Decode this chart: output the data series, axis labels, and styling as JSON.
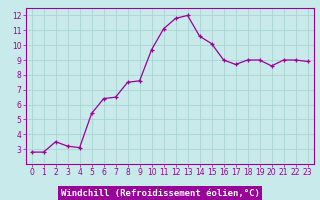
{
  "x": [
    0,
    1,
    2,
    3,
    4,
    5,
    6,
    7,
    8,
    9,
    10,
    11,
    12,
    13,
    14,
    15,
    16,
    17,
    18,
    19,
    20,
    21,
    22,
    23
  ],
  "y": [
    2.8,
    2.8,
    3.5,
    3.2,
    3.1,
    5.4,
    6.4,
    6.5,
    7.5,
    7.6,
    9.7,
    11.1,
    11.8,
    12.0,
    10.6,
    10.1,
    9.0,
    8.7,
    9.0,
    9.0,
    8.6,
    9.0,
    9.0,
    8.9
  ],
  "line_color": "#990099",
  "marker": "+",
  "bg_color": "#c8eaea",
  "grid_color": "#aad4d4",
  "xlabel": "Windchill (Refroidissement éolien,°C)",
  "xlabel_color": "#ffffff",
  "xlabel_bg": "#990099",
  "xlim": [
    -0.5,
    23.5
  ],
  "ylim": [
    2.0,
    12.5
  ],
  "yticks": [
    3,
    4,
    5,
    6,
    7,
    8,
    9,
    10,
    11,
    12
  ],
  "xticks": [
    0,
    1,
    2,
    3,
    4,
    5,
    6,
    7,
    8,
    9,
    10,
    11,
    12,
    13,
    14,
    15,
    16,
    17,
    18,
    19,
    20,
    21,
    22,
    23
  ],
  "tick_color": "#990099",
  "spine_color": "#990099",
  "font_size_label": 6.5,
  "font_size_tick": 5.5
}
